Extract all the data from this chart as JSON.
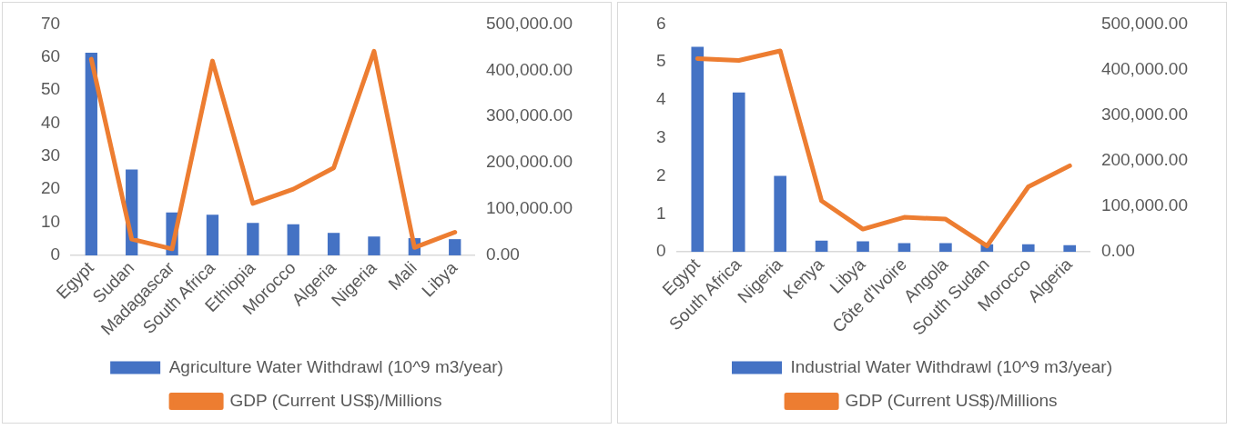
{
  "chart_data": [
    {
      "type": "bar",
      "categories": [
        "Egypt",
        "Sudan",
        "Madagascar",
        "South Africa",
        "Ethiopia",
        "Morocco",
        "Algeria",
        "Nigeria",
        "Mali",
        "Libya"
      ],
      "series": [
        {
          "name": "Agriculture Water Withdrawl (10^9 m3/year)",
          "color": "#4472c4",
          "values": [
            61.3,
            26,
            13,
            12.3,
            9.8,
            9.4,
            6.8,
            5.7,
            5.2,
            4.9
          ]
        },
        {
          "name": "GDP (Current US$)/Millions",
          "type": "line",
          "axis": "y2",
          "color": "#ed7d31",
          "values": [
            424000,
            35000,
            14000,
            420000,
            112000,
            143000,
            189000,
            441000,
            17000,
            50000
          ]
        }
      ],
      "ylim": [
        0,
        70
      ],
      "yticks": [
        0,
        10,
        20,
        30,
        40,
        50,
        60,
        70
      ],
      "y2lim": [
        0,
        500000
      ],
      "y2ticks": [
        {
          "value": 0,
          "label": "0.00"
        },
        {
          "value": 100000,
          "label": "100,000.00"
        },
        {
          "value": 200000,
          "label": "200,000.00"
        },
        {
          "value": 300000,
          "label": "300,000.00"
        },
        {
          "value": 400000,
          "label": "400,000.00"
        },
        {
          "value": 500000,
          "label": "500,000.00"
        }
      ],
      "grid": false,
      "legend": "bottom",
      "marker": "none"
    },
    {
      "type": "bar",
      "categories": [
        "Egypt",
        "South Africa",
        "Nigeria",
        "Kenya",
        "Libya",
        "Côte d'Ivoire",
        "Angola",
        "South Sudan",
        "Morocco",
        "Algeria"
      ],
      "series": [
        {
          "name": "Industrial Water Withdrawl (10^9 m3/year)",
          "color": "#4472c4",
          "values": [
            5.4,
            4.2,
            2.0,
            0.3,
            0.28,
            0.23,
            0.23,
            0.2,
            0.2,
            0.18
          ]
        },
        {
          "name": "GDP (Current US$)/Millions",
          "type": "line",
          "axis": "y2",
          "color": "#ed7d31",
          "values": [
            424000,
            420000,
            441000,
            112000,
            50000,
            76000,
            72000,
            13000,
            143000,
            189000
          ]
        }
      ],
      "ylim": [
        0,
        6
      ],
      "yticks": [
        0,
        1,
        2,
        3,
        4,
        5,
        6
      ],
      "y2lim": [
        0,
        500000
      ],
      "y2ticks": [
        {
          "value": 0,
          "label": "0.00"
        },
        {
          "value": 100000,
          "label": "100,000.00"
        },
        {
          "value": 200000,
          "label": "200,000.00"
        },
        {
          "value": 300000,
          "label": "300,000.00"
        },
        {
          "value": 400000,
          "label": "400,000.00"
        },
        {
          "value": 500000,
          "label": "500,000.00"
        }
      ],
      "grid": false,
      "legend": "bottom",
      "marker": "none"
    }
  ]
}
